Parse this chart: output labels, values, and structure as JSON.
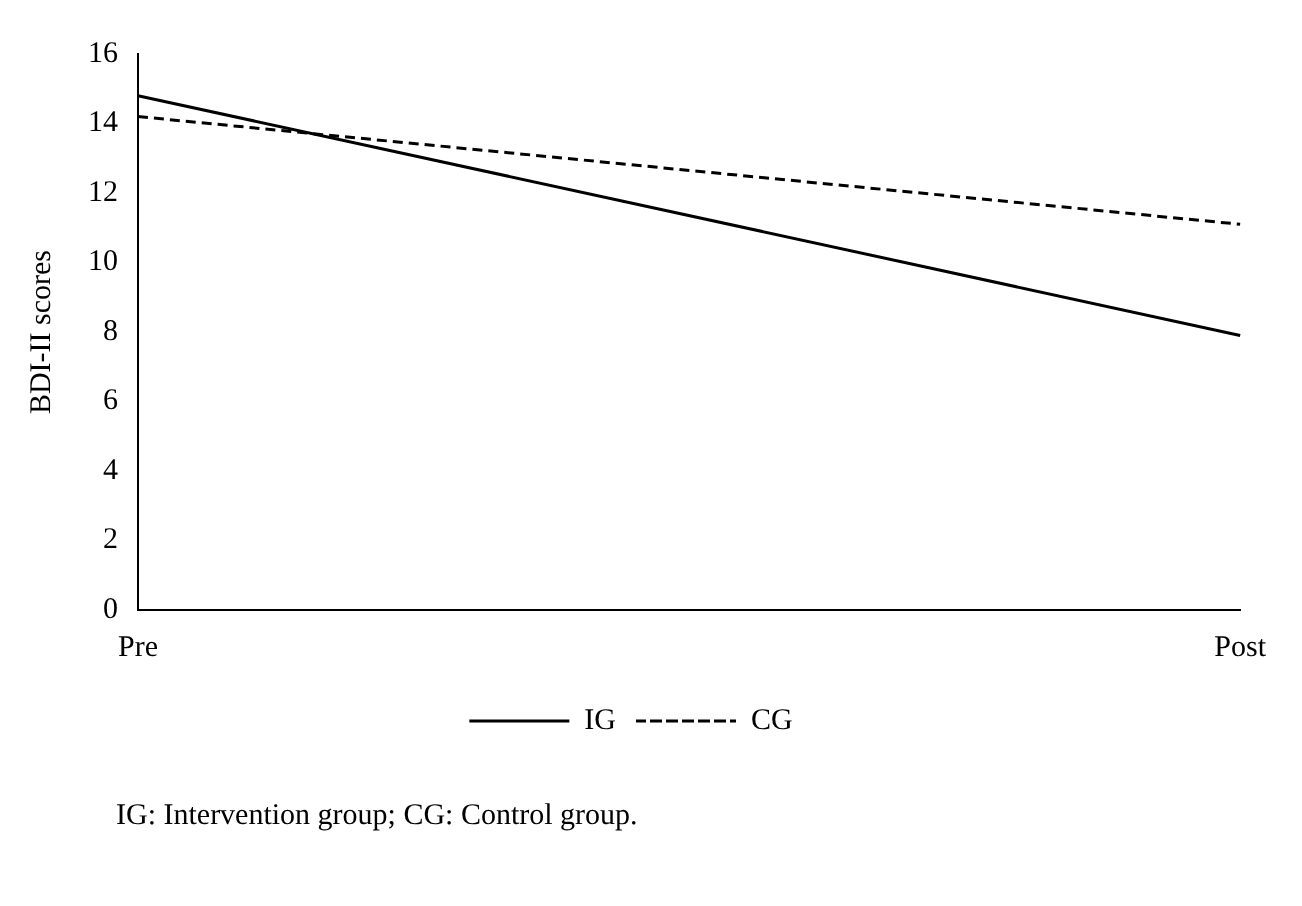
{
  "chart_data": {
    "type": "line",
    "ylabel": "BDI-II scores",
    "categories": [
      "Pre",
      "Post"
    ],
    "series": [
      {
        "name": "IG",
        "color": "#000000",
        "values": [
          14.8,
          7.9
        ],
        "line_style": "solid"
      },
      {
        "name": "CG",
        "color": "#000000",
        "values": [
          14.2,
          11.1
        ],
        "line_style": "dashed"
      }
    ],
    "ylim": [
      0,
      16
    ],
    "yticks": [
      0,
      2,
      4,
      6,
      8,
      10,
      12,
      14,
      16
    ],
    "grid": false,
    "legend": "bottom",
    "marker": "none",
    "annotations": [
      "IG: Intervention group; CG: Control group."
    ]
  }
}
